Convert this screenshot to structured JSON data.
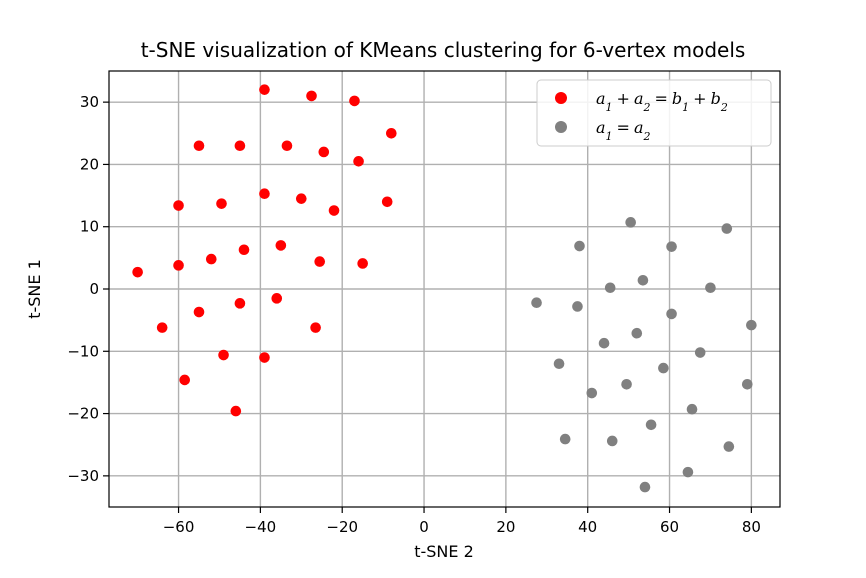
{
  "chart_data": {
    "type": "scatter",
    "title": "t-SNE visualization of KMeans clustering for 6-vertex models",
    "xlabel": "t-SNE 2",
    "ylabel": "t-SNE 1",
    "xlim": [
      -77,
      87
    ],
    "ylim": [
      -35,
      35
    ],
    "xticks": [
      -60,
      -40,
      -20,
      0,
      20,
      40,
      60,
      80
    ],
    "yticks": [
      -30,
      -20,
      -10,
      0,
      10,
      20,
      30
    ],
    "xtick_labels": [
      "−60",
      "−40",
      "−20",
      "0",
      "20",
      "40",
      "60",
      "80"
    ],
    "ytick_labels": [
      "−30",
      "−20",
      "−10",
      "0",
      "10",
      "20",
      "30"
    ],
    "grid": true,
    "legend_position": "top-right",
    "series": [
      {
        "name": "a₁ + a₂ = b₁ + b₂",
        "label_main": "a",
        "color": "#ff0000",
        "points": [
          [
            -39,
            32
          ],
          [
            -27.5,
            31
          ],
          [
            -17,
            30.2
          ],
          [
            -8,
            25
          ],
          [
            -55,
            23
          ],
          [
            -45,
            23
          ],
          [
            -33.5,
            23
          ],
          [
            -24.5,
            22
          ],
          [
            -16,
            20.5
          ],
          [
            -39,
            15.3
          ],
          [
            -30,
            14.5
          ],
          [
            -60,
            13.4
          ],
          [
            -49.5,
            13.7
          ],
          [
            -22,
            12.6
          ],
          [
            -9,
            14
          ],
          [
            -44,
            6.3
          ],
          [
            -35,
            7
          ],
          [
            -52,
            4.8
          ],
          [
            -60,
            3.8
          ],
          [
            -70,
            2.7
          ],
          [
            -25.5,
            4.4
          ],
          [
            -15,
            4.1
          ],
          [
            -45,
            -2.3
          ],
          [
            -36,
            -1.5
          ],
          [
            -55,
            -3.7
          ],
          [
            -64,
            -6.2
          ],
          [
            -26.5,
            -6.2
          ],
          [
            -49,
            -10.6
          ],
          [
            -39,
            -11
          ],
          [
            -58.5,
            -14.6
          ],
          [
            -46,
            -19.6
          ]
        ]
      },
      {
        "name": "a₁ = a₂",
        "color": "#808080",
        "points": [
          [
            50.5,
            10.7
          ],
          [
            74,
            9.7
          ],
          [
            38,
            6.9
          ],
          [
            60.5,
            6.8
          ],
          [
            53.5,
            1.4
          ],
          [
            45.5,
            0.2
          ],
          [
            70,
            0.2
          ],
          [
            27.5,
            -2.2
          ],
          [
            37.5,
            -2.8
          ],
          [
            60.5,
            -4
          ],
          [
            80,
            -5.8
          ],
          [
            52,
            -7.1
          ],
          [
            44,
            -8.7
          ],
          [
            67.5,
            -10.2
          ],
          [
            33,
            -12
          ],
          [
            58.5,
            -12.7
          ],
          [
            49.5,
            -15.3
          ],
          [
            79,
            -15.3
          ],
          [
            41,
            -16.7
          ],
          [
            65.5,
            -19.3
          ],
          [
            55.5,
            -21.8
          ],
          [
            34.5,
            -24.1
          ],
          [
            46,
            -24.4
          ],
          [
            74.5,
            -25.3
          ],
          [
            64.5,
            -29.4
          ],
          [
            54,
            -31.8
          ]
        ]
      }
    ],
    "legend": {
      "entry1": {
        "base_a": "a",
        "sub1": "1",
        "plus": "+",
        "base_a2": "a",
        "sub2": "2",
        "eq": "=",
        "base_b": "b",
        "sub3": "1",
        "plus2": "+",
        "base_b2": "b",
        "sub4": "2"
      },
      "entry2": {
        "base_a": "a",
        "sub1": "1",
        "eq": "=",
        "base_a2": "a",
        "sub2": "2"
      }
    }
  }
}
